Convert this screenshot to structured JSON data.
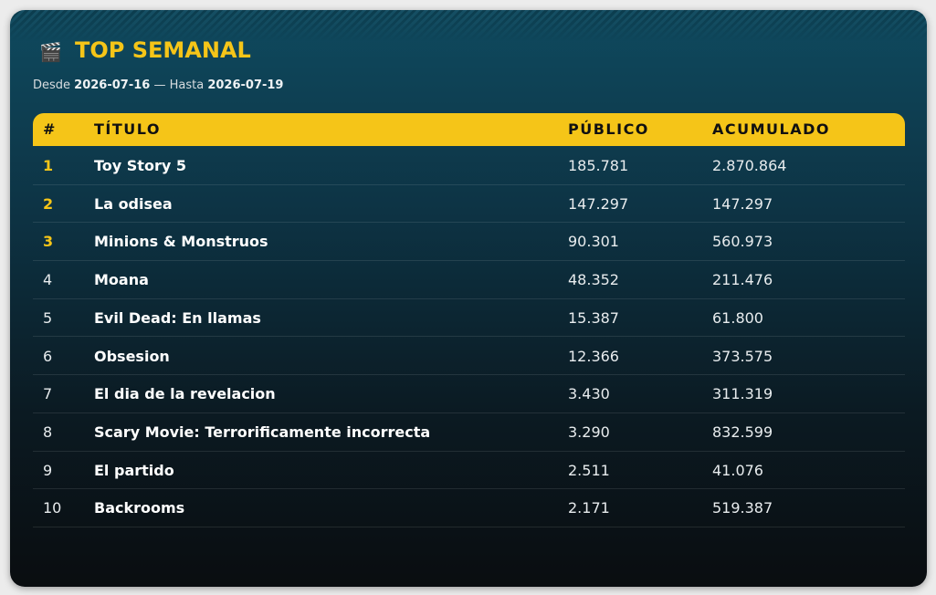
{
  "header": {
    "title": "TOP SEMANAL",
    "range": {
      "from_label": "Desde",
      "from": "2026-07-16",
      "separator": "—",
      "to_label": "Hasta",
      "to": "2026-07-19"
    }
  },
  "table": {
    "columns": [
      "#",
      "TÍTULO",
      "PÚBLICO",
      "ACUMULADO"
    ],
    "rows": [
      [
        "1",
        "Toy Story 5",
        "185.781",
        "2.870.864"
      ],
      [
        "2",
        "La odisea",
        "147.297",
        "147.297"
      ],
      [
        "3",
        "Minions & Monstruos",
        "90.301",
        "560.973"
      ],
      [
        "4",
        "Moana",
        "48.352",
        "211.476"
      ],
      [
        "5",
        "Evil Dead: En llamas",
        "15.387",
        "61.800"
      ],
      [
        "6",
        "Obsesion",
        "12.366",
        "373.575"
      ],
      [
        "7",
        "El dia de la revelacion",
        "3.430",
        "311.319"
      ],
      [
        "8",
        "Scary Movie: Terrorificamente incorrecta",
        "3.290",
        "832.599"
      ],
      [
        "9",
        "El partido",
        "2.511",
        "41.076"
      ],
      [
        "10",
        "Backrooms",
        "2.171",
        "519.387"
      ]
    ]
  }
}
